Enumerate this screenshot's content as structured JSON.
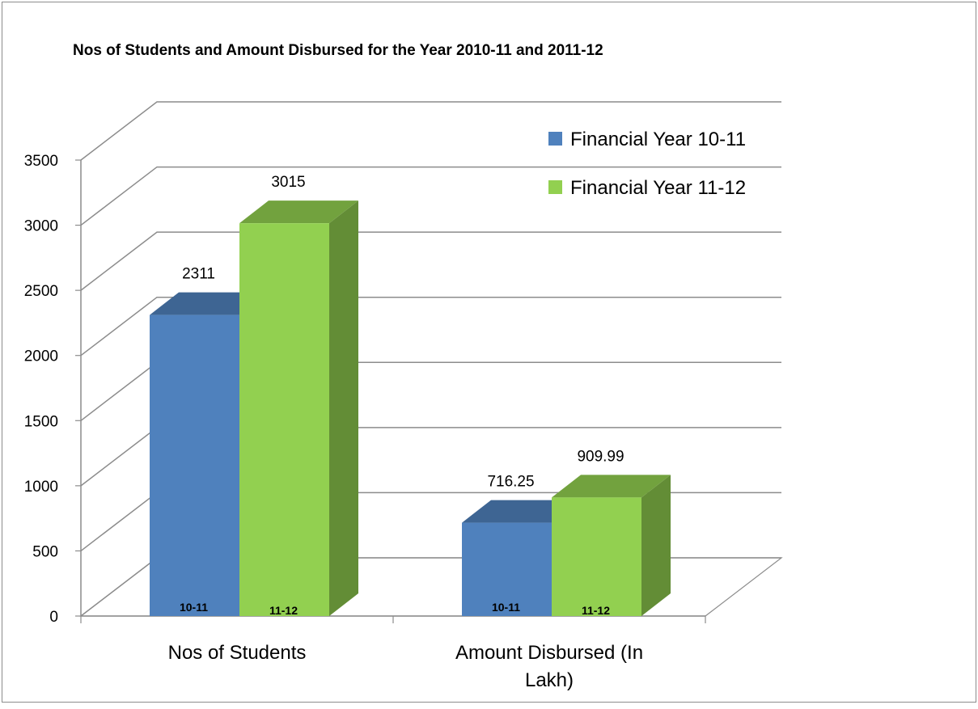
{
  "chart_data": {
    "type": "bar",
    "title": "Nos of Students and Amount Disbursed for the Year 2010-11 and 2011-12",
    "categories": [
      "Nos of Students",
      "Amount Disbursed (In Lakh)"
    ],
    "category_lines": [
      [
        "Nos of Students"
      ],
      [
        "Amount Disbursed (In",
        "Lakh)"
      ]
    ],
    "series": [
      {
        "name": "Financial Year 10-11",
        "short_label": "10-11",
        "values": [
          2311,
          716.25
        ],
        "value_labels": [
          "2311",
          "716.25"
        ],
        "color": "#4F81BD"
      },
      {
        "name": "Financial Year 11-12",
        "short_label": "11-12",
        "values": [
          3015,
          909.99
        ],
        "value_labels": [
          "3015",
          "909.99"
        ],
        "color": "#92D050"
      }
    ],
    "ylim": [
      0,
      3500
    ],
    "yticks": [
      0,
      500,
      1000,
      1500,
      2000,
      2500,
      3000,
      3500
    ],
    "grid": true,
    "legend": "top-right",
    "style": "3d-clustered-column"
  }
}
